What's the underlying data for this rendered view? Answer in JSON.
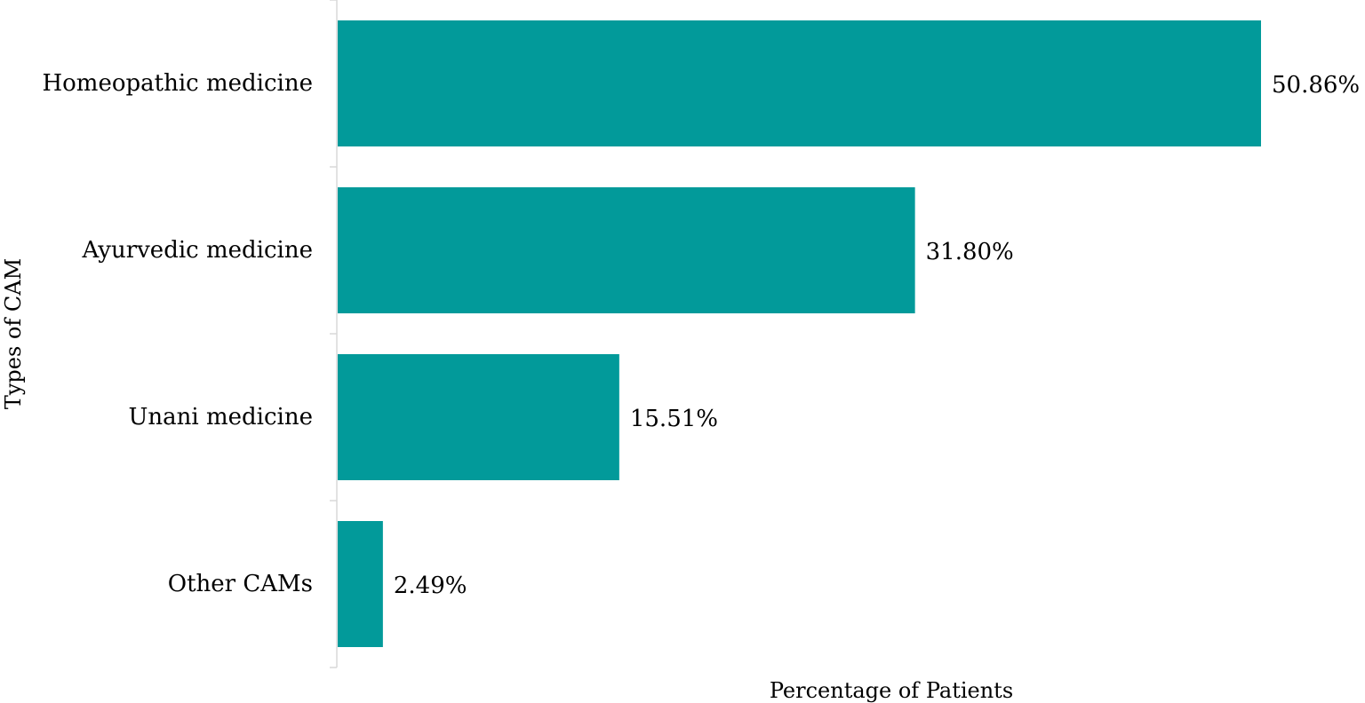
{
  "chart_data": {
    "type": "bar",
    "orientation": "horizontal",
    "categories": [
      "Homeopathic medicine",
      "Ayurvedic medicine",
      "Unani medicine",
      "Other CAMs"
    ],
    "values": [
      50.86,
      31.8,
      15.51,
      2.49
    ],
    "data_labels": [
      "50.86%",
      "31.80%",
      "15.51%",
      "2.49%"
    ],
    "xlabel": "Percentage of Patients",
    "ylabel": "Types of CAM",
    "xlim": [
      0,
      50.86
    ],
    "grid": false,
    "legend": "none",
    "colors": {
      "bar": "#029A9A",
      "axis": "#d9d9d9",
      "text": "#000000"
    }
  }
}
